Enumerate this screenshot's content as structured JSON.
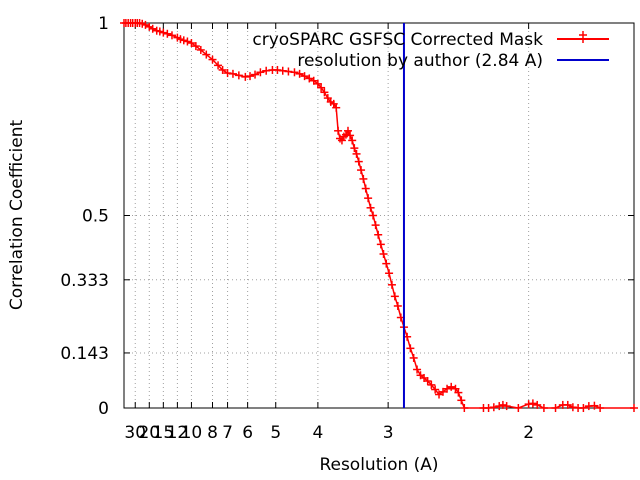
{
  "chart_data": {
    "type": "line",
    "xlabel": "Resolution (A)",
    "ylabel": "Correlation Coefficient",
    "x_scale": "reciprocal",
    "xlim": [
      50,
      1.6
    ],
    "ylim": [
      0,
      1
    ],
    "grid": true,
    "legend_position": "top-right",
    "x_ticks": [
      {
        "value": 30,
        "label": "30"
      },
      {
        "value": 20,
        "label": "20"
      },
      {
        "value": 15,
        "label": "15"
      },
      {
        "value": 12,
        "label": "12"
      },
      {
        "value": 10,
        "label": "10"
      },
      {
        "value": 8,
        "label": "8"
      },
      {
        "value": 7,
        "label": "7"
      },
      {
        "value": 6,
        "label": "6"
      },
      {
        "value": 5,
        "label": "5"
      },
      {
        "value": 4,
        "label": "4"
      },
      {
        "value": 3,
        "label": "3"
      },
      {
        "value": 2,
        "label": "2"
      }
    ],
    "y_ticks": [
      {
        "value": 0,
        "label": "0"
      },
      {
        "value": 0.143,
        "label": "0.143"
      },
      {
        "value": 0.333,
        "label": "0.333"
      },
      {
        "value": 0.5,
        "label": "0.5"
      },
      {
        "value": 1,
        "label": "1"
      }
    ],
    "series": [
      {
        "name": "cryoSPARC GSFSC Corrected Mask",
        "color": "#ff0000",
        "marker": "plus",
        "points": [
          [
            50,
            1.0
          ],
          [
            45,
            1.0
          ],
          [
            40,
            1.0
          ],
          [
            36,
            1.0
          ],
          [
            33,
            1.0
          ],
          [
            30,
            1.0
          ],
          [
            28,
            1.0
          ],
          [
            26,
            1.0
          ],
          [
            24,
            0.998
          ],
          [
            22,
            0.995
          ],
          [
            20,
            0.99
          ],
          [
            18.5,
            0.985
          ],
          [
            17,
            0.98
          ],
          [
            16,
            0.978
          ],
          [
            15,
            0.975
          ],
          [
            14,
            0.972
          ],
          [
            13,
            0.968
          ],
          [
            12,
            0.962
          ],
          [
            11.5,
            0.958
          ],
          [
            11,
            0.955
          ],
          [
            10.5,
            0.952
          ],
          [
            10,
            0.948
          ],
          [
            9.5,
            0.94
          ],
          [
            9,
            0.93
          ],
          [
            8.5,
            0.918
          ],
          [
            8,
            0.905
          ],
          [
            7.6,
            0.89
          ],
          [
            7.3,
            0.878
          ],
          [
            7.0,
            0.87
          ],
          [
            6.7,
            0.868
          ],
          [
            6.4,
            0.864
          ],
          [
            6.1,
            0.86
          ],
          [
            5.9,
            0.862
          ],
          [
            5.7,
            0.866
          ],
          [
            5.5,
            0.872
          ],
          [
            5.3,
            0.876
          ],
          [
            5.1,
            0.878
          ],
          [
            4.95,
            0.878
          ],
          [
            4.8,
            0.876
          ],
          [
            4.65,
            0.874
          ],
          [
            4.5,
            0.872
          ],
          [
            4.38,
            0.868
          ],
          [
            4.27,
            0.862
          ],
          [
            4.17,
            0.856
          ],
          [
            4.08,
            0.85
          ],
          [
            4.0,
            0.842
          ],
          [
            3.94,
            0.832
          ],
          [
            3.88,
            0.82
          ],
          [
            3.82,
            0.805
          ],
          [
            3.77,
            0.795
          ],
          [
            3.72,
            0.79
          ],
          [
            3.68,
            0.78
          ],
          [
            3.65,
            0.72
          ],
          [
            3.62,
            0.7
          ],
          [
            3.59,
            0.695
          ],
          [
            3.56,
            0.705
          ],
          [
            3.53,
            0.71
          ],
          [
            3.5,
            0.72
          ],
          [
            3.47,
            0.708
          ],
          [
            3.44,
            0.695
          ],
          [
            3.41,
            0.675
          ],
          [
            3.38,
            0.66
          ],
          [
            3.35,
            0.64
          ],
          [
            3.32,
            0.618
          ],
          [
            3.29,
            0.595
          ],
          [
            3.26,
            0.57
          ],
          [
            3.23,
            0.545
          ],
          [
            3.2,
            0.52
          ],
          [
            3.17,
            0.5
          ],
          [
            3.14,
            0.475
          ],
          [
            3.11,
            0.45
          ],
          [
            3.08,
            0.425
          ],
          [
            3.05,
            0.4
          ],
          [
            3.02,
            0.375
          ],
          [
            2.99,
            0.35
          ],
          [
            2.96,
            0.32
          ],
          [
            2.93,
            0.29
          ],
          [
            2.9,
            0.265
          ],
          [
            2.87,
            0.235
          ],
          [
            2.84,
            0.21
          ],
          [
            2.81,
            0.185
          ],
          [
            2.78,
            0.155
          ],
          [
            2.75,
            0.13
          ],
          [
            2.72,
            0.1
          ],
          [
            2.69,
            0.085
          ],
          [
            2.66,
            0.078
          ],
          [
            2.63,
            0.07
          ],
          [
            2.6,
            0.06
          ],
          [
            2.57,
            0.048
          ],
          [
            2.54,
            0.035
          ],
          [
            2.51,
            0.042
          ],
          [
            2.48,
            0.05
          ],
          [
            2.45,
            0.055
          ],
          [
            2.42,
            0.05
          ],
          [
            2.4,
            0.04
          ],
          [
            2.38,
            0.02
          ],
          [
            2.36,
            0.0
          ],
          [
            2.24,
            0.0
          ],
          [
            2.21,
            0.0
          ],
          [
            2.18,
            0.002
          ],
          [
            2.15,
            0.005
          ],
          [
            2.13,
            0.008
          ],
          [
            2.11,
            0.005
          ],
          [
            2.05,
            0.0
          ],
          [
            2.0,
            0.01
          ],
          [
            1.98,
            0.012
          ],
          [
            1.96,
            0.008
          ],
          [
            1.93,
            0.0
          ],
          [
            1.88,
            0.0
          ],
          [
            1.85,
            0.008
          ],
          [
            1.83,
            0.008
          ],
          [
            1.81,
            0.002
          ],
          [
            1.79,
            0.0
          ],
          [
            1.77,
            0.0
          ],
          [
            1.75,
            0.005
          ],
          [
            1.73,
            0.006
          ],
          [
            1.71,
            0.0
          ],
          [
            1.6,
            0.0
          ]
        ]
      },
      {
        "name": "resolution by author (2.84 A)",
        "color": "#0000cc",
        "type": "vertical-line",
        "x": 2.84
      }
    ]
  }
}
